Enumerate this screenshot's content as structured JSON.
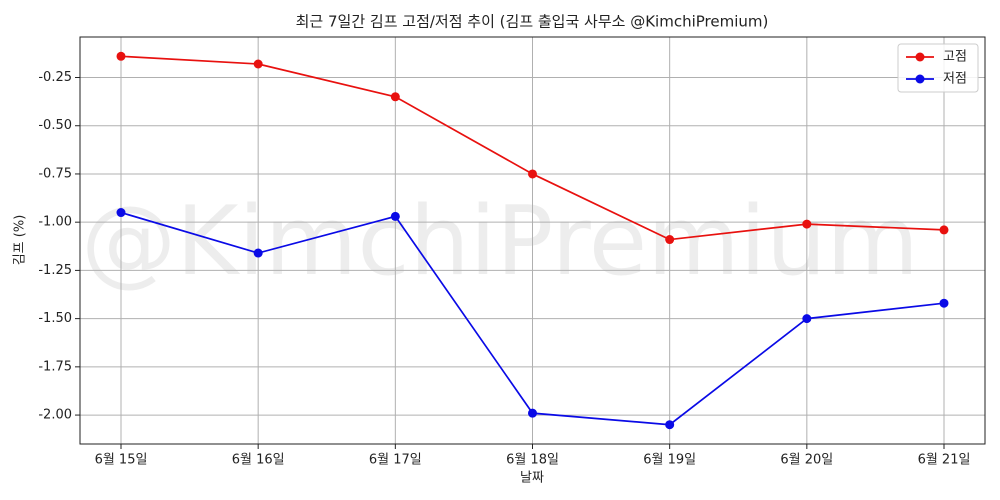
{
  "chart_data": {
    "type": "line",
    "title": "최근 7일간 김프 고점/저점 추이 (김프 출입국 사무소 @KimchiPremium)",
    "watermark": "@KimchiPremium",
    "x_label": "날짜",
    "y_label": "김프 (%)",
    "categories": [
      "6월 15일",
      "6월 16일",
      "6월 17일",
      "6월 18일",
      "6월 19일",
      "6월 20일",
      "6월 21일"
    ],
    "series": [
      {
        "name": "고점",
        "color": "#e8110f",
        "values": [
          -0.14,
          -0.18,
          -0.35,
          -0.75,
          -1.09,
          -1.01,
          -1.04
        ]
      },
      {
        "name": "저점",
        "color": "#0a0ae6",
        "values": [
          -0.95,
          -1.16,
          -0.97,
          -1.99,
          -2.05,
          -1.5,
          -1.42
        ]
      }
    ],
    "ylim": [
      -2.15,
      -0.04
    ],
    "yticks": [
      -0.25,
      {
        "value": -0.5,
        "label": "-0.50"
      },
      -0.75,
      {
        "value": -1,
        "label": "-1.00"
      },
      -1.25,
      {
        "value": -1.5,
        "label": "-1.50"
      },
      -1.75,
      {
        "value": -2,
        "label": "-2.00"
      }
    ],
    "grid": true,
    "legend": "upper right"
  }
}
